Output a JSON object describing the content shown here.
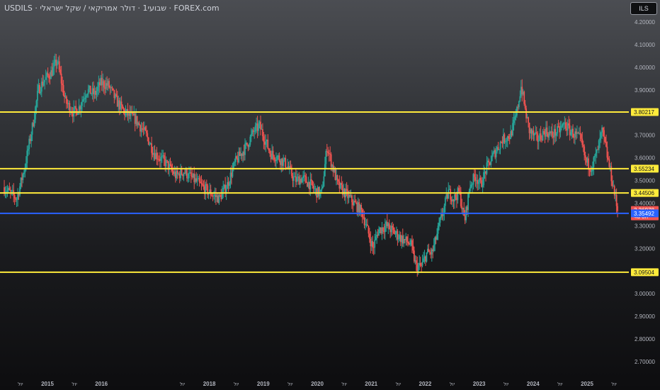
{
  "header": {
    "title": "USDILS · שבועי1 · דולר אמריקאי / שקל ישראלי · FOREX.com",
    "currency": "ILS"
  },
  "colors": {
    "up": "#26a69a",
    "down": "#ef5350",
    "level_line": "#ffeb3b",
    "current_line": "#2962ff",
    "axis_text": "#b2b5be"
  },
  "chart_data": {
    "type": "candlestick",
    "symbol": "USDILS",
    "timeframe": "1W",
    "ylim": [
      2.65,
      4.23
    ],
    "xlim": [
      2014.2,
      2025.85
    ],
    "y_ticks": [
      "4.20000",
      "4.10000",
      "4.00000",
      "3.90000",
      "3.80000",
      "3.70000",
      "3.60000",
      "3.50000",
      "3.40000",
      "3.30000",
      "3.20000",
      "3.10000",
      "3.00000",
      "2.90000",
      "2.80000",
      "2.70000"
    ],
    "x_ticks": [
      {
        "x": 2014.5,
        "label": "יול",
        "major": false
      },
      {
        "x": 2015.0,
        "label": "2015",
        "major": true
      },
      {
        "x": 2015.5,
        "label": "יול",
        "major": false
      },
      {
        "x": 2016.0,
        "label": "2016",
        "major": true
      },
      {
        "x": 2017.5,
        "label": "יול",
        "major": false
      },
      {
        "x": 2018.0,
        "label": "2018",
        "major": true
      },
      {
        "x": 2018.5,
        "label": "יול",
        "major": false
      },
      {
        "x": 2019.0,
        "label": "2019",
        "major": true
      },
      {
        "x": 2019.5,
        "label": "יול",
        "major": false
      },
      {
        "x": 2020.0,
        "label": "2020",
        "major": true
      },
      {
        "x": 2020.5,
        "label": "יול",
        "major": false
      },
      {
        "x": 2021.0,
        "label": "2021",
        "major": true
      },
      {
        "x": 2021.5,
        "label": "יול",
        "major": false
      },
      {
        "x": 2022.0,
        "label": "2022",
        "major": true
      },
      {
        "x": 2022.5,
        "label": "יול",
        "major": false
      },
      {
        "x": 2023.0,
        "label": "2023",
        "major": true
      },
      {
        "x": 2023.5,
        "label": "יול",
        "major": false
      },
      {
        "x": 2024.0,
        "label": "2024",
        "major": true
      },
      {
        "x": 2024.5,
        "label": "יול",
        "major": false
      },
      {
        "x": 2025.0,
        "label": "2025",
        "major": true
      },
      {
        "x": 2025.5,
        "label": "יול",
        "major": false
      }
    ],
    "levels": [
      {
        "value": 3.80217,
        "label": "3.80217"
      },
      {
        "value": 3.55234,
        "label": "3.55234"
      },
      {
        "value": 3.44506,
        "label": "3.44506"
      },
      {
        "value": 3.09504,
        "label": "3.09504"
      }
    ],
    "current": {
      "value": 3.35492,
      "label": "3.35492"
    },
    "last_price": {
      "value": 3.36978,
      "label": "3.36978",
      "countdown": "4d 8h"
    },
    "price_path": [
      [
        2014.2,
        3.47
      ],
      [
        2014.35,
        3.44
      ],
      [
        2014.45,
        3.42
      ],
      [
        2014.6,
        3.56
      ],
      [
        2014.75,
        3.75
      ],
      [
        2014.85,
        3.9
      ],
      [
        2014.95,
        3.94
      ],
      [
        2015.1,
        3.98
      ],
      [
        2015.2,
        4.03
      ],
      [
        2015.35,
        3.85
      ],
      [
        2015.5,
        3.8
      ],
      [
        2015.6,
        3.82
      ],
      [
        2015.75,
        3.9
      ],
      [
        2015.9,
        3.88
      ],
      [
        2016.0,
        3.93
      ],
      [
        2016.15,
        3.92
      ],
      [
        2016.3,
        3.85
      ],
      [
        2016.45,
        3.8
      ],
      [
        2016.65,
        3.77
      ],
      [
        2016.85,
        3.7
      ],
      [
        2017.0,
        3.62
      ],
      [
        2017.2,
        3.58
      ],
      [
        2017.4,
        3.52
      ],
      [
        2017.55,
        3.54
      ],
      [
        2017.75,
        3.5
      ],
      [
        2018.0,
        3.45
      ],
      [
        2018.2,
        3.42
      ],
      [
        2018.35,
        3.48
      ],
      [
        2018.5,
        3.58
      ],
      [
        2018.7,
        3.65
      ],
      [
        2018.85,
        3.72
      ],
      [
        2018.95,
        3.74
      ],
      [
        2019.15,
        3.62
      ],
      [
        2019.3,
        3.6
      ],
      [
        2019.45,
        3.57
      ],
      [
        2019.6,
        3.5
      ],
      [
        2019.75,
        3.51
      ],
      [
        2019.9,
        3.48
      ],
      [
        2020.0,
        3.45
      ],
      [
        2020.1,
        3.44
      ],
      [
        2020.2,
        3.65
      ],
      [
        2020.28,
        3.58
      ],
      [
        2020.4,
        3.48
      ],
      [
        2020.55,
        3.44
      ],
      [
        2020.7,
        3.4
      ],
      [
        2020.85,
        3.36
      ],
      [
        2020.95,
        3.28
      ],
      [
        2021.05,
        3.2
      ],
      [
        2021.15,
        3.28
      ],
      [
        2021.3,
        3.3
      ],
      [
        2021.45,
        3.27
      ],
      [
        2021.6,
        3.24
      ],
      [
        2021.75,
        3.22
      ],
      [
        2021.85,
        3.12
      ],
      [
        2021.95,
        3.12
      ],
      [
        2022.05,
        3.18
      ],
      [
        2022.15,
        3.18
      ],
      [
        2022.3,
        3.32
      ],
      [
        2022.45,
        3.45
      ],
      [
        2022.55,
        3.42
      ],
      [
        2022.65,
        3.45
      ],
      [
        2022.75,
        3.32
      ],
      [
        2022.85,
        3.48
      ],
      [
        2022.95,
        3.52
      ],
      [
        2023.05,
        3.48
      ],
      [
        2023.15,
        3.55
      ],
      [
        2023.3,
        3.62
      ],
      [
        2023.45,
        3.68
      ],
      [
        2023.6,
        3.7
      ],
      [
        2023.7,
        3.78
      ],
      [
        2023.8,
        3.92
      ],
      [
        2023.88,
        3.8
      ],
      [
        2023.95,
        3.72
      ],
      [
        2024.1,
        3.68
      ],
      [
        2024.25,
        3.72
      ],
      [
        2024.35,
        3.7
      ],
      [
        2024.5,
        3.72
      ],
      [
        2024.6,
        3.75
      ],
      [
        2024.7,
        3.72
      ],
      [
        2024.8,
        3.7
      ],
      [
        2024.9,
        3.68
      ],
      [
        2025.0,
        3.58
      ],
      [
        2025.1,
        3.56
      ],
      [
        2025.2,
        3.62
      ],
      [
        2025.3,
        3.72
      ],
      [
        2025.4,
        3.6
      ],
      [
        2025.5,
        3.48
      ],
      [
        2025.58,
        3.37
      ]
    ]
  }
}
